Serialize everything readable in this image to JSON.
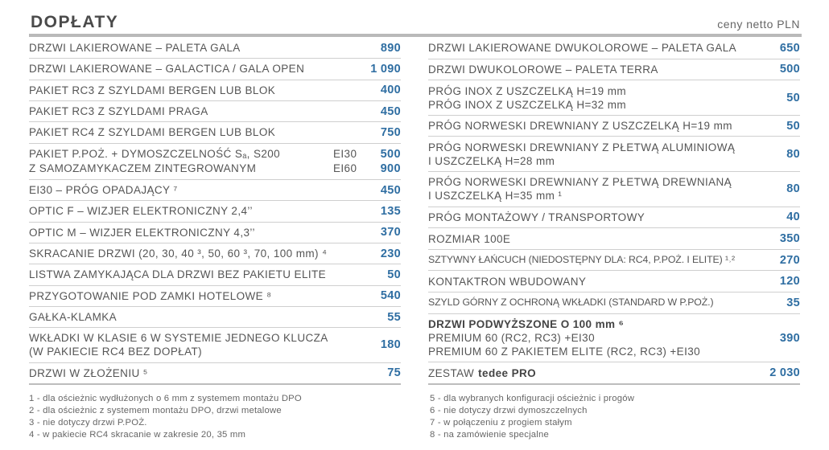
{
  "header": {
    "title": "DOPŁATY",
    "note": "ceny netto PLN"
  },
  "left": [
    {
      "lines": [
        {
          "text": "DRZWI LAKIEROWANE – PALETA GALA"
        }
      ],
      "price": "890"
    },
    {
      "lines": [
        {
          "text": "DRZWI LAKIEROWANE – GALACTICA / GALA OPEN"
        }
      ],
      "price": "1 090"
    },
    {
      "lines": [
        {
          "text": "PAKIET RC3 Z SZYLDAMI BERGEN LUB BLOK"
        }
      ],
      "price": "400"
    },
    {
      "lines": [
        {
          "text": "PAKIET RC3 Z SZYLDAMI PRAGA"
        }
      ],
      "price": "450"
    },
    {
      "lines": [
        {
          "text": "PAKIET RC4 Z SZYLDAMI BERGEN LUB BLOK"
        }
      ],
      "price": "750"
    },
    {
      "lines": [
        {
          "text": "PAKIET P.POŻ. + DYMOSZCZELNOŚĆ Sₐ, S200",
          "tag": "EI30",
          "price": "500"
        },
        {
          "text": "Z SAMOZAMYKACZEM ZINTEGROWANYM",
          "tag": "EI60",
          "price": "900"
        }
      ]
    },
    {
      "lines": [
        {
          "text": "EI30 – PRÓG OPADAJĄCY ⁷"
        }
      ],
      "price": "450"
    },
    {
      "lines": [
        {
          "text": "OPTIC F – WIZJER ELEKTRONICZNY 2,4’’"
        }
      ],
      "price": "135"
    },
    {
      "lines": [
        {
          "text": "OPTIC M – WIZJER ELEKTRONICZNY 4,3’’"
        }
      ],
      "price": "370"
    },
    {
      "lines": [
        {
          "text": "SKRACANIE DRZWI (20, 30, 40 ³, 50, 60 ³, 70, 100 mm) ⁴"
        }
      ],
      "price": "230"
    },
    {
      "lines": [
        {
          "text": "LISTWA ZAMYKAJĄCA DLA DRZWI BEZ PAKIETU ELITE"
        }
      ],
      "price": "50"
    },
    {
      "lines": [
        {
          "text": "PRZYGOTOWANIE POD ZAMKI HOTELOWE ⁸"
        }
      ],
      "price": "540"
    },
    {
      "lines": [
        {
          "text": "GAŁKA-KLAMKA"
        }
      ],
      "price": "55"
    },
    {
      "lines": [
        {
          "text": "WKŁADKI W KLASIE 6 W SYSTEMIE JEDNEGO KLUCZA"
        },
        {
          "text": "(W PAKIECIE RC4 BEZ DOPŁAT)"
        }
      ],
      "price": "180"
    },
    {
      "lines": [
        {
          "text": "DRZWI W ZŁOŻENIU ⁵"
        }
      ],
      "price": "75"
    }
  ],
  "right": [
    {
      "lines": [
        {
          "text": "DRZWI LAKIEROWANE DWUKOLOROWE – PALETA GALA"
        }
      ],
      "price": "650"
    },
    {
      "lines": [
        {
          "text": "DRZWI DWUKOLOROWE – PALETA TERRA"
        }
      ],
      "price": "500"
    },
    {
      "lines": [
        {
          "text": "PRÓG INOX Z USZCZELKĄ  H=19 mm"
        },
        {
          "text": "PRÓG INOX Z USZCZELKĄ H=32 mm"
        }
      ],
      "price": "50"
    },
    {
      "lines": [
        {
          "text": "PRÓG NORWESKI DREWNIANY Z USZCZELKĄ H=19 mm"
        }
      ],
      "price": "50"
    },
    {
      "lines": [
        {
          "text": "PRÓG NORWESKI DREWNIANY Z PŁETWĄ ALUMINIOWĄ"
        },
        {
          "text": "I USZCZELKĄ H=28 mm"
        }
      ],
      "price": "80"
    },
    {
      "lines": [
        {
          "text": "PRÓG NORWESKI DREWNIANY Z PŁETWĄ DREWNIANĄ"
        },
        {
          "text": "I USZCZELKĄ H=35 mm ¹"
        }
      ],
      "price": "80"
    },
    {
      "lines": [
        {
          "text": "PRÓG MONTAŻOWY / TRANSPORTOWY"
        }
      ],
      "price": "40"
    },
    {
      "lines": [
        {
          "text": "ROZMIAR 100E"
        }
      ],
      "price": "350"
    },
    {
      "lines": [
        {
          "text": "SZTYWNY ŁAŃCUCH (NIEDOSTĘPNY DLA: RC4, P.POŻ. I ELITE) ¹˒²"
        }
      ],
      "price": "270",
      "condensed": true
    },
    {
      "lines": [
        {
          "text": "KONTAKTRON WBUDOWANY"
        }
      ],
      "price": "120"
    },
    {
      "lines": [
        {
          "text": "SZYLD GÓRNY Z OCHRONĄ WKŁADKI (STANDARD W P.POŻ.)"
        }
      ],
      "price": "35",
      "condensed": true
    },
    {
      "lines": [
        {
          "emph": "DRZWI PODWYŻSZONE O 100 mm ⁶"
        },
        {
          "text": "PREMIUM 60 (RC2, RC3) +EI30"
        },
        {
          "text": "PREMIUM 60 Z PAKIETEM ELITE (RC2, RC3) +EI30"
        }
      ],
      "price": "390"
    },
    {
      "lines": [
        {
          "text": "ZESTAW",
          "emph": "tedee PRO"
        }
      ],
      "price": "2 030"
    }
  ],
  "footnotes": {
    "left": [
      "1 - dla ościeżnic wydłużonych o 6 mm z systemem montażu DPO",
      "2 - dla ościeżnic z systemem montażu DPO, drzwi metalowe",
      "3 - nie dotyczy drzwi P.POŻ.",
      "4 - w pakiecie RC4 skracanie w zakresie 20, 35 mm"
    ],
    "right": [
      "5 - dla wybranych konfiguracji ościeżnic i progów",
      "6 - nie dotyczy drzwi dymoszczelnych",
      "7 - w połączeniu z progiem stałym",
      "8 - na zamówienie specjalne"
    ]
  }
}
